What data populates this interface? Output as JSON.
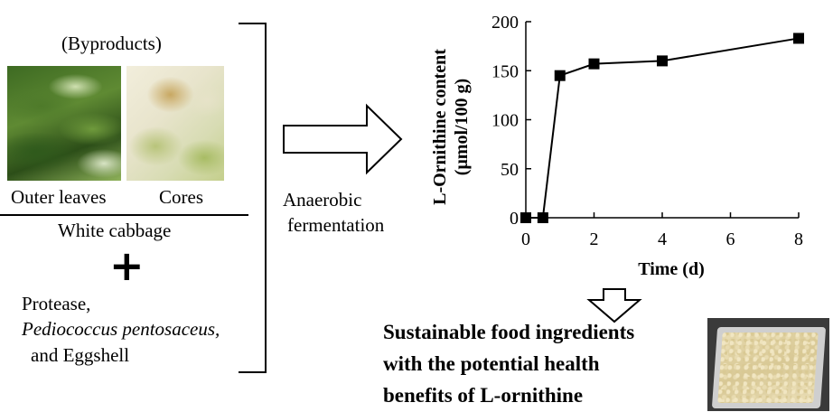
{
  "left_panel": {
    "byproducts_label": "(Byproducts)",
    "photo_outer_leaves": "outer-leaves-photo",
    "photo_cores": "cores-photo",
    "outer_leaves_label": "Outer leaves",
    "cores_label": "Cores",
    "white_cabbage_label": "White cabbage",
    "plus_symbol": "+",
    "additives_line1": "Protease,",
    "additives_line2": "Pediococcus pentosaceus,",
    "additives_line3": "and Eggshell"
  },
  "process": {
    "arrow_icon": "right-arrow-icon",
    "label_line1": "Anaerobic",
    "label_line2": "fermentation"
  },
  "chart_data": {
    "type": "line",
    "xlabel": "Time (d)",
    "ylabel_line1": "L-Ornithine content",
    "ylabel_line2": "(μmol/100 g)",
    "x_ticks": [
      "0",
      "2",
      "4",
      "6",
      "8"
    ],
    "y_ticks": [
      "0",
      "50",
      "100",
      "150",
      "200"
    ],
    "xlim": [
      0,
      8
    ],
    "ylim": [
      0,
      200
    ],
    "grid": false,
    "marker": "square",
    "series": [
      {
        "x": [
          0,
          0.5,
          1,
          2,
          4,
          8
        ],
        "y": [
          0,
          0,
          145,
          157,
          160,
          183
        ]
      }
    ]
  },
  "result": {
    "down_arrow_icon": "down-arrow-icon",
    "line1": "Sustainable food ingredients",
    "line2": "with the potential health",
    "line3": "benefits of L-ornithine",
    "photo_product": "fermented-product-tray-photo"
  }
}
